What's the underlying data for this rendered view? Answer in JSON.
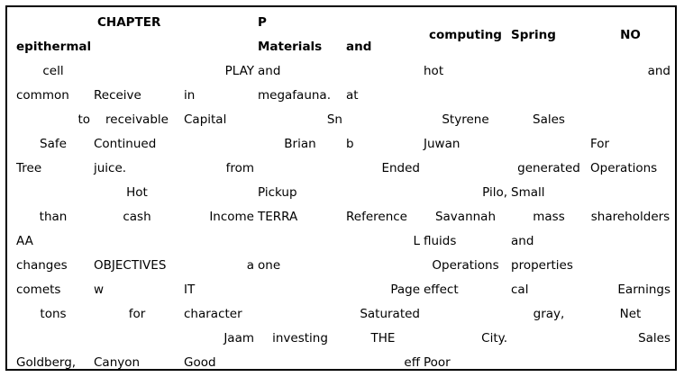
{
  "table": {
    "header_row1": [
      "",
      "CHAPTER",
      "",
      "P",
      "",
      "computing",
      "Spring",
      "NO"
    ],
    "header_row2": [
      "epithermal",
      "",
      "",
      "Materials",
      "and",
      "",
      "",
      ""
    ],
    "rows": [
      [
        "cell",
        "",
        "PLAY",
        "and",
        "",
        "hot",
        "",
        "and"
      ],
      [
        "common",
        "Receive",
        "in",
        "megafauna.",
        "at",
        "",
        "",
        ""
      ],
      [
        "to",
        "receivable",
        "Capital",
        "Sn",
        "",
        "Styrene",
        "Sales",
        ""
      ],
      [
        "Safe",
        "Continued",
        "",
        "Brian",
        "b",
        "Juwan",
        "",
        "For"
      ],
      [
        "Tree",
        "juice.",
        "from",
        "",
        "Ended",
        "",
        "generated",
        "Operations"
      ],
      [
        "Hot",
        "",
        "",
        "Pickup",
        "",
        "Pilo,",
        "Small",
        ""
      ],
      [
        "than",
        "cash",
        "Income",
        "TERRA",
        "Reference",
        "Savannah",
        "mass",
        "shareholders"
      ],
      [
        "AA",
        "",
        "",
        "",
        "L",
        "fluids",
        "and",
        ""
      ],
      [
        "changes",
        "OBJECTIVES",
        "a",
        "one",
        "",
        "Operations",
        "properties",
        ""
      ],
      [
        "comets",
        "w",
        "IT",
        "",
        "Page",
        "effect",
        "cal",
        "Earnings"
      ],
      [
        "tons",
        "for",
        "character",
        "",
        "Saturated",
        "",
        "gray,",
        "Net"
      ],
      [
        "",
        "",
        "Jaam",
        "investing",
        "THE",
        "City.",
        "",
        "Sales"
      ],
      [
        "Goldberg,",
        "Canyon",
        "Good",
        "",
        "eff",
        "Poor",
        "",
        ""
      ]
    ]
  }
}
